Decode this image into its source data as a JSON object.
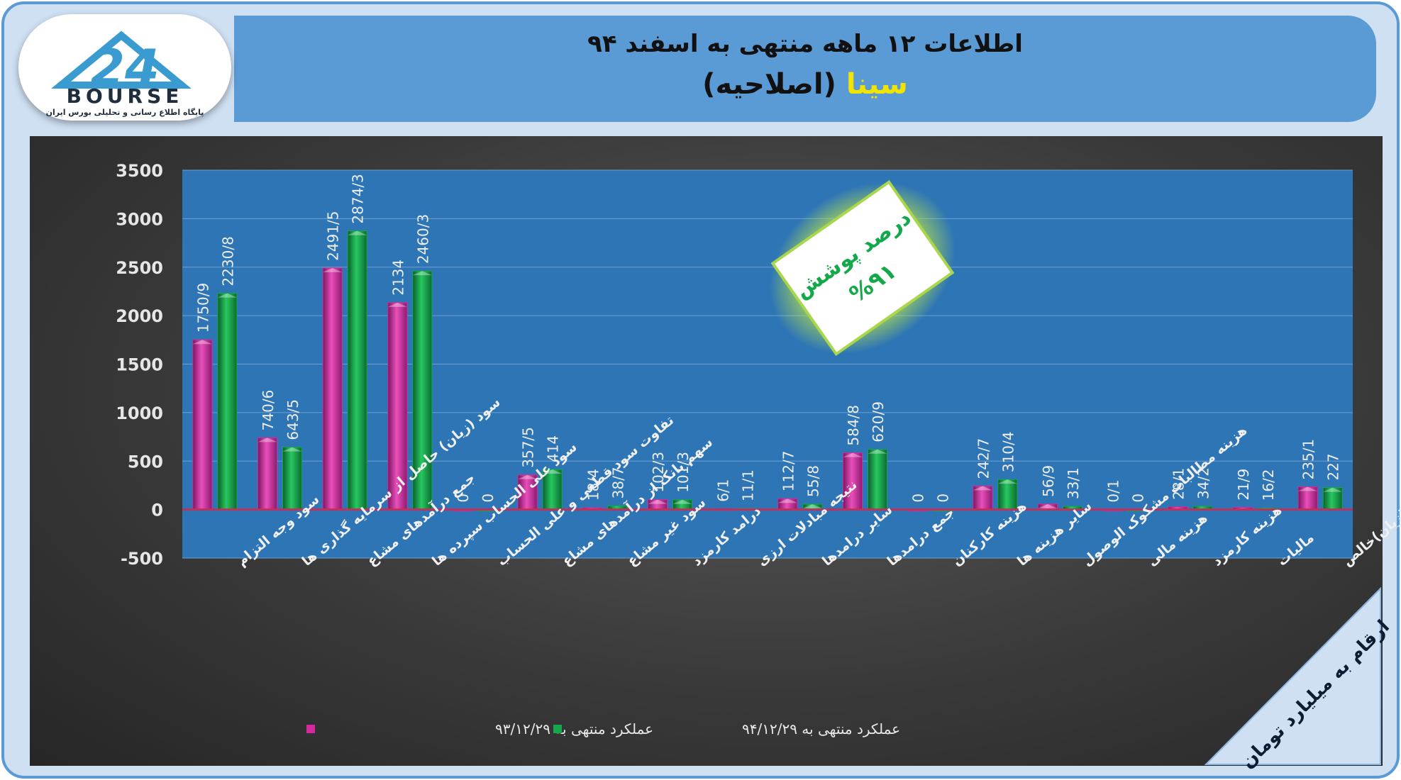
{
  "header": {
    "title_line1": "اطلاعات ۱۲ ماهه منتهی به اسفند ۹۴",
    "company_name": "سینا",
    "company_suffix": "(اصلاحیه)"
  },
  "logo": {
    "brand": "BOURSE",
    "number": "24",
    "tagline": "پایگاه اطلاع رسانی و تحلیلی بورس ایران"
  },
  "badge": {
    "line1": "درصد پوشش",
    "line2": "%۹۱"
  },
  "corner_note": "ارقام به میلیارد تومان",
  "colors": {
    "series1": "#d12a9c",
    "series2": "#13a84a",
    "plot_bg": "#2e75b6",
    "frame_bg": "#5b9bd5",
    "badge_text": "#13a84a"
  },
  "chart_data": {
    "type": "bar",
    "ylim": [
      -500,
      3500
    ],
    "yticks": [
      "-500",
      "0",
      "500",
      "1000",
      "1500",
      "2000",
      "2500",
      "3000",
      "3500"
    ],
    "grid": true,
    "legend_position": "bottom",
    "categories": [
      "سود وجه التزام",
      "سود (زیان) حاصل از سرمایه گذاری ها",
      "جمع درآمدهای مشاع",
      "سود علی الحساب سپرده ها",
      "تفاوت سود قطعی و علی الحساب",
      "سهم بانک از درآمدهای مشاع",
      "سود غیر مشاع",
      "درامد کارمزد",
      "نتیجه مبادلات ارزی",
      "سایر درامدها",
      "جمع درامدها",
      "هزینه کارکنان",
      "سایر هزینه ها",
      "هزینه مطالبات مشکوک الوصول",
      "هزینه مالی",
      "هزینه کارمزد",
      "مالیات",
      "سود (زیان)خالص"
    ],
    "series": [
      {
        "name": "عملکرد منتهی به ۹۳/۱۲/۲۹",
        "values": [
          1750.9,
          740.6,
          2491.5,
          2134,
          0,
          357.5,
          18.4,
          102.3,
          6.1,
          112.7,
          584.8,
          0,
          242.7,
          56.9,
          0.1,
          28.1,
          21.9,
          235.1
        ],
        "labels": [
          "1750/9",
          "740/6",
          "2491/5",
          "2134",
          "0",
          "357/5",
          "18/4",
          "102/3",
          "6/1",
          "112/7",
          "584/8",
          "0",
          "242/7",
          "56/9",
          "0/1",
          "28/1",
          "21/9",
          "235/1"
        ]
      },
      {
        "name": "عملکرد منتهی به ۹۴/۱۲/۲۹",
        "values": [
          2230.8,
          643.5,
          2874.3,
          2460.3,
          0,
          414,
          38.7,
          101.3,
          11.1,
          55.8,
          620.9,
          0,
          310.4,
          33.1,
          0,
          34.2,
          16.2,
          227
        ],
        "labels": [
          "2230/8",
          "643/5",
          "2874/3",
          "2460/3",
          "0",
          "414",
          "38/7",
          "101/3",
          "11/1",
          "55/8",
          "620/9",
          "0",
          "310/4",
          "33/1",
          "0",
          "34/2",
          "16/2",
          "227"
        ]
      }
    ]
  }
}
